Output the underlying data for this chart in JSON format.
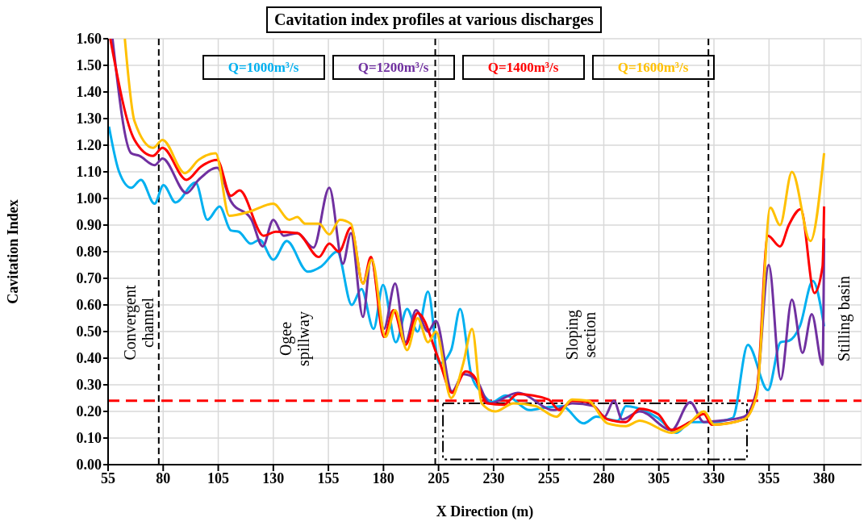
{
  "chart_data": {
    "type": "line",
    "title": "Cavitation index profiles at various discharges",
    "xlabel": "X Direction (m)",
    "ylabel": "Cavitation Index",
    "xlim": [
      55,
      397
    ],
    "xticks": [
      55,
      80,
      105,
      130,
      155,
      180,
      205,
      230,
      255,
      280,
      305,
      330,
      355,
      380
    ],
    "ylim": [
      0,
      1.6
    ],
    "yticks": [
      {
        "value": 0,
        "label": "0.00"
      },
      {
        "value": 0.1,
        "label": "0.10"
      },
      {
        "value": 0.2,
        "label": "0.20"
      },
      {
        "value": 0.3,
        "label": "0.30"
      },
      {
        "value": 0.4,
        "label": "0.40"
      },
      {
        "value": 0.5,
        "label": "0.50"
      },
      {
        "value": 0.6,
        "label": "0.60"
      },
      {
        "value": 0.7,
        "label": "0.70"
      },
      {
        "value": 0.8,
        "label": "0.80"
      },
      {
        "value": 0.9,
        "label": "0.90"
      },
      {
        "value": 1.0,
        "label": "1.00"
      },
      {
        "value": 1.1,
        "label": "1.10"
      },
      {
        "value": 1.2,
        "label": "1.20"
      },
      {
        "value": 1.3,
        "label": "1.30"
      },
      {
        "value": 1.4,
        "label": "1.40"
      },
      {
        "value": 1.5,
        "label": "1.50"
      },
      {
        "value": 1.6,
        "label": "1.60"
      }
    ],
    "grid": true,
    "legend": "top",
    "marker": "none",
    "line_style": "solid",
    "series": [
      {
        "name": "Q=1000m³/s",
        "color": "#00b0f0",
        "x": [
          55.4,
          60,
          65.5,
          69.9,
          76.1,
          80.1,
          85.6,
          94.7,
          100.1,
          105.6,
          110.7,
          114.3,
          119.8,
          123.8,
          130,
          136.1,
          145.6,
          151.8,
          159,
          165.6,
          170,
          175.5,
          179.8,
          185.6,
          190.7,
          195.5,
          200.2,
          205.3,
          210.7,
          214.8,
          219.8,
          224.6,
          229.3,
          235.5,
          246.4,
          253.7,
          261,
          270.8,
          276.6,
          286.4,
          290,
          304.6,
          313,
          319.2,
          329,
          338.5,
          345.4,
          354.5,
          360.3,
          364,
          369,
          374.9,
          380
        ],
        "values": [
          1.27,
          1.1,
          1.04,
          1.07,
          0.98,
          1.05,
          0.985,
          1.06,
          0.92,
          0.97,
          0.88,
          0.875,
          0.83,
          0.845,
          0.77,
          0.84,
          0.725,
          0.745,
          0.8,
          0.6,
          0.66,
          0.51,
          0.675,
          0.46,
          0.585,
          0.5,
          0.65,
          0.38,
          0.43,
          0.585,
          0.34,
          0.27,
          0.235,
          0.26,
          0.205,
          0.215,
          0.22,
          0.155,
          0.18,
          0.165,
          0.22,
          0.175,
          0.12,
          0.16,
          0.16,
          0.175,
          0.45,
          0.28,
          0.46,
          0.465,
          0.52,
          0.69,
          0.52
        ]
      },
      {
        "name": "Q=1200m³/s",
        "color": "#7030a0",
        "x": [
          57,
          65.5,
          69.2,
          76.1,
          79.7,
          90.6,
          96.1,
          104.5,
          110.7,
          120.1,
          125.2,
          130,
          134.7,
          140.9,
          148.2,
          155.4,
          161.6,
          165.2,
          170.7,
          174.3,
          180.2,
          185.3,
          190,
          194.8,
          200.2,
          203.8,
          211.1,
          216.2,
          222,
          228.2,
          241,
          257.3,
          265.7,
          275.5,
          280.3,
          284.6,
          288.3,
          296.3,
          310.8,
          319.2,
          325.4,
          332.7,
          343.6,
          349.4,
          354.9,
          360.3,
          365.4,
          370.2,
          374.4,
          379.3,
          380
        ],
        "values": [
          1.6,
          1.17,
          1.16,
          1.125,
          1.15,
          1.02,
          1.07,
          1.115,
          0.99,
          0.92,
          0.82,
          0.92,
          0.86,
          0.87,
          0.815,
          1.04,
          0.755,
          0.87,
          0.555,
          0.775,
          0.51,
          0.68,
          0.46,
          0.58,
          0.5,
          0.54,
          0.275,
          0.34,
          0.32,
          0.23,
          0.27,
          0.205,
          0.23,
          0.22,
          0.18,
          0.24,
          0.17,
          0.2,
          0.13,
          0.235,
          0.16,
          0.165,
          0.18,
          0.28,
          0.75,
          0.32,
          0.62,
          0.42,
          0.565,
          0.375,
          0.85
        ]
      },
      {
        "name": "Q=1400m³/s",
        "color": "#ff0000",
        "x": [
          56,
          67,
          75.4,
          79.7,
          90.6,
          97.2,
          104.5,
          110.7,
          114.7,
          125.6,
          131.1,
          140.9,
          150.7,
          155.4,
          159.8,
          165.2,
          170.7,
          174.3,
          180.2,
          184.5,
          190,
          195.5,
          205.3,
          211.1,
          217.3,
          220.9,
          227.1,
          234.4,
          241,
          254.8,
          259.9,
          265.7,
          273,
          281.7,
          290,
          296.3,
          304.6,
          310.8,
          319.2,
          325.4,
          329,
          343.6,
          349.4,
          354.5,
          360,
          364,
          369.4,
          375.6,
          379.3,
          380
        ],
        "values": [
          1.6,
          1.22,
          1.16,
          1.19,
          1.07,
          1.12,
          1.145,
          1.01,
          1.03,
          0.86,
          0.875,
          0.87,
          0.78,
          0.83,
          0.8,
          0.89,
          0.68,
          0.78,
          0.48,
          0.58,
          0.45,
          0.57,
          0.39,
          0.27,
          0.35,
          0.335,
          0.23,
          0.225,
          0.265,
          0.245,
          0.205,
          0.24,
          0.235,
          0.17,
          0.16,
          0.21,
          0.19,
          0.13,
          0.16,
          0.19,
          0.15,
          0.17,
          0.27,
          0.86,
          0.82,
          0.9,
          0.96,
          0.645,
          0.745,
          0.97
        ]
      },
      {
        "name": "Q=1600m³/s",
        "color": "#ffc000",
        "x": [
          62.6,
          67,
          75.4,
          79.7,
          89.9,
          96.1,
          103.8,
          110,
          119.1,
          130,
          137.3,
          140.9,
          144.5,
          150.7,
          155.4,
          160.2,
          165.2,
          170.7,
          174.7,
          180.9,
          185.3,
          190.7,
          195.5,
          200.2,
          203.8,
          210.7,
          216.2,
          220.2,
          224.6,
          230.8,
          239.1,
          249,
          258.4,
          265.7,
          273,
          281.7,
          290,
          296.3,
          310.8,
          318.1,
          325.4,
          330.1,
          343.6,
          349.4,
          355.6,
          360,
          365.4,
          373.8,
          380
        ],
        "values": [
          1.6,
          1.29,
          1.19,
          1.22,
          1.095,
          1.145,
          1.17,
          0.935,
          0.95,
          0.98,
          0.92,
          0.93,
          0.905,
          0.905,
          0.865,
          0.92,
          0.905,
          0.68,
          0.77,
          0.48,
          0.58,
          0.43,
          0.55,
          0.46,
          0.5,
          0.25,
          0.38,
          0.51,
          0.23,
          0.2,
          0.23,
          0.22,
          0.18,
          0.245,
          0.24,
          0.155,
          0.145,
          0.165,
          0.12,
          0.15,
          0.2,
          0.15,
          0.17,
          0.26,
          0.965,
          0.9,
          1.1,
          0.84,
          1.17
        ]
      }
    ],
    "ref_lines": [
      {
        "axis": "y",
        "value": 0.24,
        "color": "#ff0000",
        "line_style": "dashed"
      },
      {
        "axis": "x",
        "value": 78,
        "color": "#000000",
        "line_style": "dashed"
      },
      {
        "axis": "x",
        "value": 203.5,
        "color": "#000000",
        "line_style": "dashed"
      },
      {
        "axis": "x",
        "value": 327.5,
        "color": "#000000",
        "line_style": "dashed"
      }
    ],
    "annotations": [
      "Convergent\nchannel",
      "Ogee\nspillway",
      "Sloping\nsection",
      "Stilling basin"
    ]
  }
}
